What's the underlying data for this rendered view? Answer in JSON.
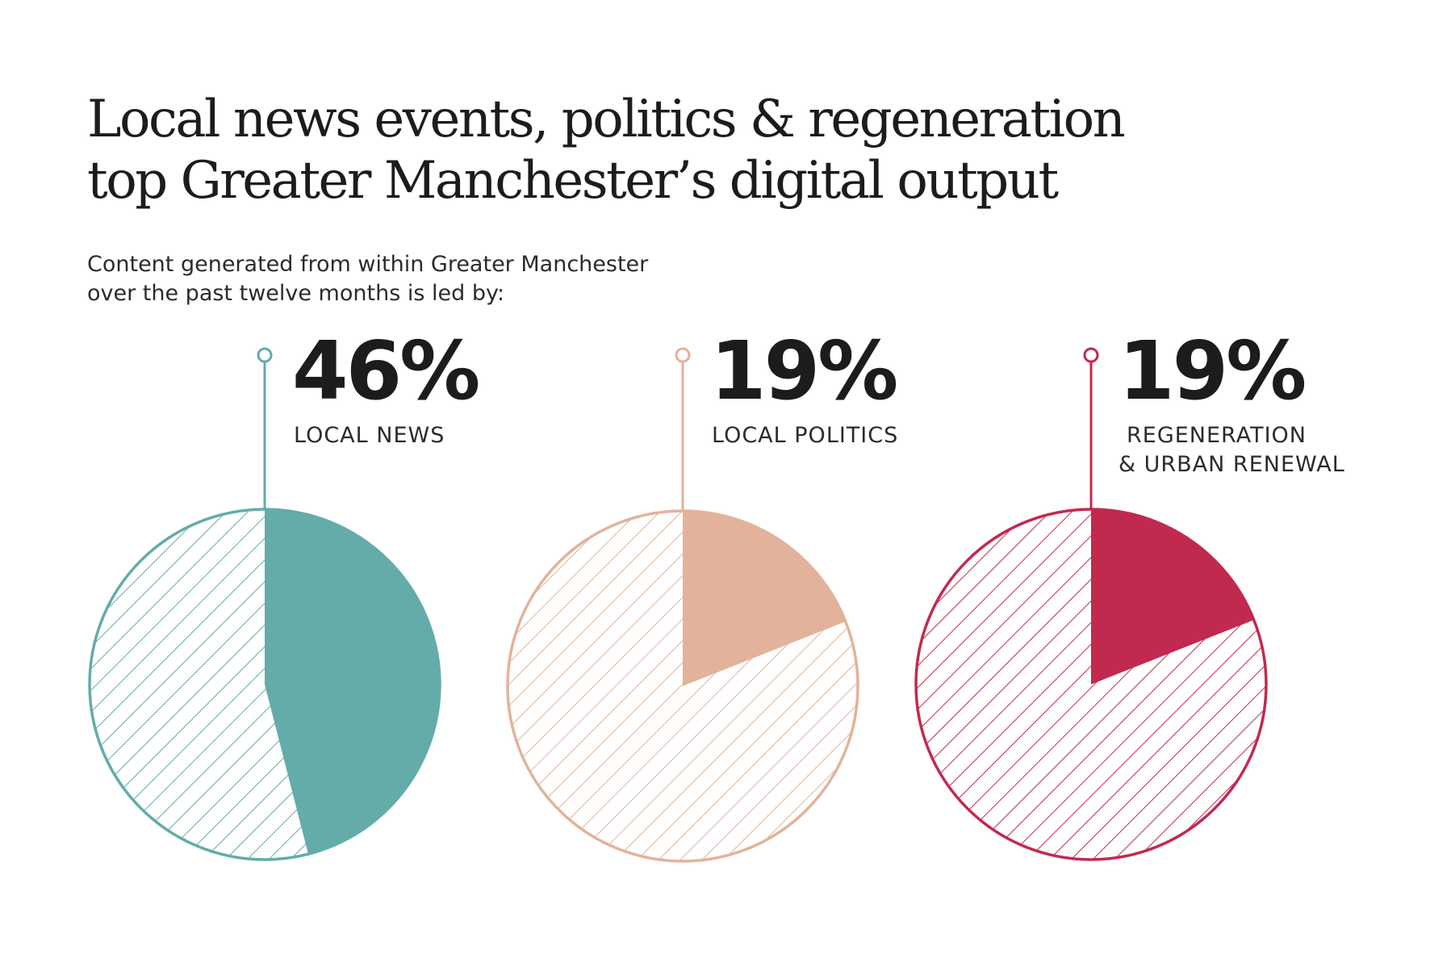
{
  "title_lines": [
    "Local news events, politics & regeneration",
    "top Greater Manchester’s digital output"
  ],
  "subtitle_lines": [
    "Content generated from within Greater Manchester",
    "over the past twelve months is led by:"
  ],
  "chart_data": {
    "type": "pie",
    "title": "Local news events, politics & regeneration top Greater Manchester’s digital output",
    "series": [
      {
        "label": "46%",
        "category_lines": [
          "LOCAL NEWS"
        ],
        "value": 46,
        "color": "#63aca9"
      },
      {
        "label": "19%",
        "category_lines": [
          "LOCAL POLITICS"
        ],
        "value": 19,
        "color": "#e2b39a"
      },
      {
        "label": "19%",
        "category_lines": [
          "REGENERATION",
          "& URBAN RENEWAL"
        ],
        "value": 19,
        "color": "#c2294f"
      }
    ]
  }
}
